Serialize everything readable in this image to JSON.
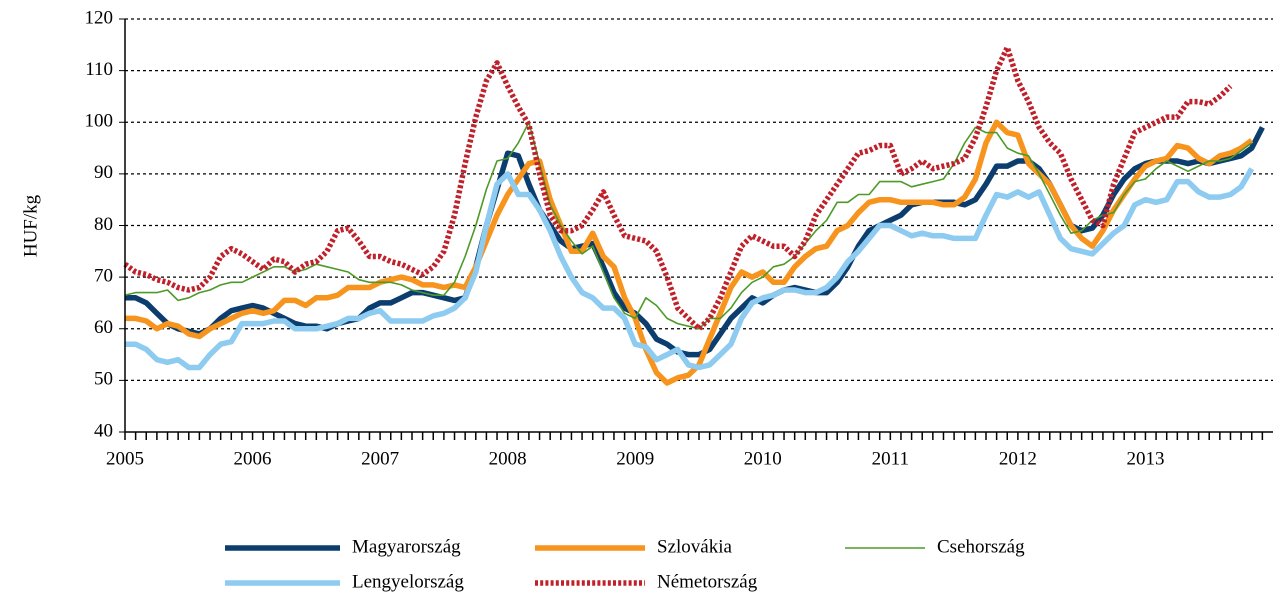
{
  "chart_data": {
    "type": "line",
    "y_label": "HUF/kg",
    "categories": [
      "2005",
      null,
      null,
      null,
      null,
      null,
      null,
      null,
      null,
      null,
      null,
      null,
      "2006",
      null,
      null,
      null,
      null,
      null,
      null,
      null,
      null,
      null,
      null,
      null,
      "2007",
      null,
      null,
      null,
      null,
      null,
      null,
      null,
      null,
      null,
      null,
      null,
      "2008",
      null,
      null,
      null,
      null,
      null,
      null,
      null,
      null,
      null,
      null,
      null,
      "2009",
      null,
      null,
      null,
      null,
      null,
      null,
      null,
      null,
      null,
      null,
      null,
      "2010",
      null,
      null,
      null,
      null,
      null,
      null,
      null,
      null,
      null,
      null,
      null,
      "2011",
      null,
      null,
      null,
      null,
      null,
      null,
      null,
      null,
      null,
      null,
      null,
      "2012",
      null,
      null,
      null,
      null,
      null,
      null,
      null,
      null,
      null,
      null,
      null,
      "2013",
      null,
      null,
      null,
      null,
      null,
      null,
      null,
      null,
      null,
      null,
      null
    ],
    "ylim": [
      40,
      120
    ],
    "yticks": [
      40,
      50,
      60,
      70,
      80,
      90,
      100,
      110,
      120
    ],
    "grid": true,
    "legend": "bottom",
    "series": [
      {
        "name": "Magyarország",
        "color": "#0b3d6e",
        "values": [
          66,
          66,
          65,
          63,
          61,
          60,
          59.5,
          59,
          60,
          62,
          63.5,
          64,
          64.5,
          64,
          63,
          62,
          61,
          60.5,
          60.5,
          60,
          61,
          61.5,
          62,
          64,
          65,
          65,
          66,
          67,
          67,
          66.5,
          66,
          65.5,
          66,
          72,
          80,
          87,
          94,
          93.5,
          88,
          83,
          80,
          77,
          75.5,
          76,
          76.5,
          72,
          67,
          64,
          63,
          61,
          58,
          57,
          55.5,
          55,
          55,
          56,
          59,
          62,
          64,
          66,
          65,
          66.5,
          67.5,
          68,
          67.5,
          67,
          67,
          69,
          72,
          76,
          79,
          80,
          81,
          82,
          84,
          84.5,
          84.5,
          84.5,
          84.5,
          84,
          85,
          88,
          91.5,
          91.5,
          92.5,
          92.5,
          91,
          88,
          84,
          80,
          79,
          79.5,
          82,
          86,
          89,
          91,
          92,
          92.5,
          92.5,
          92.5,
          92,
          92.5,
          92,
          92.5,
          93,
          93.5,
          95,
          99
        ]
      },
      {
        "name": "Szlovákia",
        "color": "#f7941d",
        "values": [
          62,
          62,
          61.5,
          60,
          61,
          60.5,
          59,
          58.5,
          60,
          61,
          62,
          63,
          63.5,
          63,
          63.5,
          65.5,
          65.5,
          64.5,
          66,
          66,
          66.5,
          68,
          68,
          68,
          69,
          69.5,
          70,
          69.5,
          68.5,
          68.5,
          68,
          68.5,
          68,
          72,
          77,
          82,
          86,
          89,
          92,
          92.5,
          85,
          80,
          75,
          75,
          78.5,
          74,
          72,
          66,
          62,
          56,
          51.5,
          49.5,
          50.5,
          51,
          53,
          58,
          63,
          68,
          71,
          70,
          71,
          69,
          69,
          72,
          74,
          75.5,
          76,
          79,
          80,
          82.5,
          84.5,
          85,
          85,
          84.5,
          84.5,
          84.5,
          84.5,
          84,
          84,
          85.5,
          89,
          96,
          100,
          98,
          97.5,
          92,
          90,
          88,
          84,
          80,
          77.5,
          76,
          79,
          83,
          86,
          89,
          91.5,
          92.5,
          93,
          95.5,
          95,
          93,
          92,
          93.5,
          94,
          95,
          96.5,
          null
        ]
      },
      {
        "name": "Csehország",
        "color": "#4e9a28",
        "values": [
          66.5,
          67,
          67,
          67,
          67.5,
          65.5,
          66,
          67,
          67.5,
          68.5,
          69,
          69,
          70,
          71,
          72,
          72,
          71,
          71.5,
          72.5,
          72,
          71.5,
          71,
          69.5,
          69,
          69,
          69,
          68.5,
          67.5,
          67,
          66.5,
          66.5,
          69,
          74,
          80,
          87,
          92.5,
          93,
          96,
          100,
          92,
          84,
          80,
          77,
          74.5,
          76,
          71,
          66,
          63,
          62,
          66,
          64.5,
          62,
          61,
          60.5,
          60,
          62,
          62,
          64,
          67,
          69,
          70,
          72,
          72.5,
          74,
          76.5,
          79,
          81,
          84.5,
          84.5,
          86,
          86,
          88.5,
          88.5,
          88.5,
          87.5,
          88,
          88.5,
          89,
          92,
          96,
          99,
          98,
          98,
          95,
          94,
          93.5,
          90,
          86,
          82,
          78.5,
          79,
          81,
          82,
          82.5,
          86,
          88.5,
          89,
          91,
          92.5,
          91.5,
          90.5,
          91.5,
          92.5,
          92.5,
          93,
          94.5,
          96,
          null
        ]
      },
      {
        "name": "Lengyelország",
        "color": "#8ecbf0",
        "values": [
          57,
          57,
          56,
          54,
          53.5,
          54,
          52.5,
          52.5,
          55,
          57,
          57.5,
          61,
          61,
          61,
          61.5,
          61.5,
          60,
          60,
          60,
          60.5,
          61,
          62,
          62,
          63,
          63.5,
          61.5,
          61.5,
          61.5,
          61.5,
          62.5,
          63,
          64,
          66,
          71,
          80,
          88,
          90,
          86,
          86,
          83,
          79,
          74,
          70,
          67,
          66,
          64,
          64,
          62,
          57,
          56.5,
          54,
          55,
          56,
          53,
          52.5,
          53,
          55,
          57,
          62,
          65,
          66,
          66.5,
          67.5,
          67.5,
          67,
          67,
          68,
          70,
          73,
          75,
          77.5,
          80,
          80,
          79,
          78,
          78.5,
          78,
          78,
          77.5,
          77.5,
          77.5,
          82,
          86,
          85.5,
          86.5,
          85.5,
          86.5,
          82,
          77.5,
          75.5,
          75,
          74.5,
          76.5,
          78.5,
          80,
          84,
          85,
          84.5,
          85,
          88.5,
          88.5,
          86.5,
          85.5,
          85.5,
          86,
          87.5,
          91,
          null
        ]
      },
      {
        "name": "Németország",
        "color": "#c0202a",
        "values": [
          72.5,
          71,
          70.5,
          69.5,
          69,
          68,
          67.5,
          68,
          70,
          74,
          75.5,
          74.5,
          73,
          71.5,
          73.5,
          73,
          71,
          72.5,
          73,
          75,
          79,
          79.5,
          77,
          74,
          74,
          73,
          72.5,
          71.5,
          70.5,
          72,
          75,
          82,
          92,
          101,
          108,
          111.5,
          107,
          103,
          99.5,
          90,
          82,
          79,
          79,
          80,
          83,
          86.5,
          82,
          78,
          77.5,
          77,
          75,
          70,
          64,
          62,
          60,
          62,
          66,
          71,
          76,
          78,
          77,
          76,
          76,
          74,
          77,
          82,
          85,
          88,
          91,
          94,
          94.5,
          95.5,
          95.5,
          90,
          91,
          92.5,
          91,
          91.5,
          92,
          93,
          97,
          103,
          110,
          114.5,
          108,
          104,
          99,
          96,
          94,
          89,
          85,
          81,
          80,
          88,
          93,
          98,
          99,
          100,
          101,
          101,
          104,
          104,
          103.5,
          105,
          107,
          null,
          null,
          null
        ]
      }
    ]
  }
}
